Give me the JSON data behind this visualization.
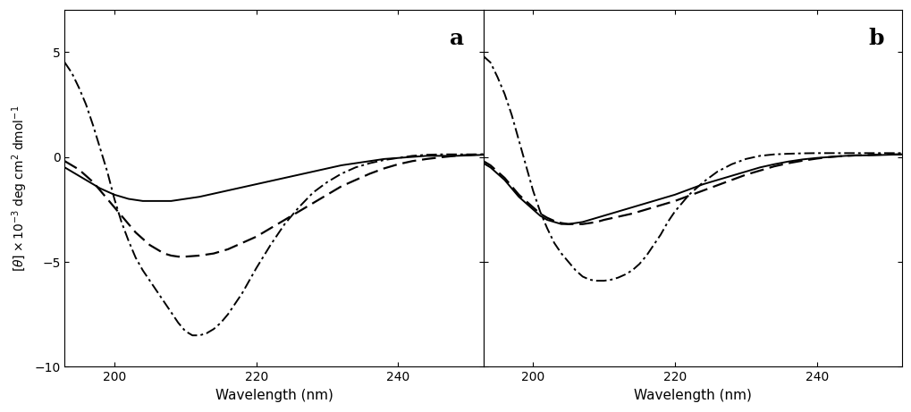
{
  "xlim": [
    193,
    252
  ],
  "ylim": [
    -10,
    7
  ],
  "yticks": [
    5,
    0,
    -5,
    -10
  ],
  "xticks": [
    200,
    220,
    240
  ],
  "xlabel": "Wavelength (nm)",
  "label_a": "a",
  "label_b": "b",
  "panel_a": {
    "solid": {
      "x": [
        193,
        194,
        195,
        196,
        197,
        198,
        199,
        200,
        201,
        202,
        203,
        204,
        205,
        206,
        207,
        208,
        209,
        210,
        212,
        214,
        216,
        218,
        220,
        222,
        224,
        226,
        228,
        230,
        232,
        234,
        236,
        238,
        240,
        242,
        244,
        246,
        248,
        250,
        252
      ],
      "y": [
        -0.5,
        -0.7,
        -0.9,
        -1.1,
        -1.3,
        -1.5,
        -1.65,
        -1.8,
        -1.9,
        -2.0,
        -2.05,
        -2.1,
        -2.1,
        -2.1,
        -2.1,
        -2.1,
        -2.05,
        -2.0,
        -1.9,
        -1.75,
        -1.6,
        -1.45,
        -1.3,
        -1.15,
        -1.0,
        -0.85,
        -0.7,
        -0.55,
        -0.4,
        -0.3,
        -0.2,
        -0.1,
        -0.05,
        0.0,
        0.05,
        0.05,
        0.05,
        0.07,
        0.1
      ]
    },
    "dashed": {
      "x": [
        193,
        194,
        195,
        196,
        197,
        198,
        199,
        200,
        201,
        202,
        203,
        204,
        205,
        206,
        207,
        208,
        209,
        210,
        212,
        214,
        216,
        218,
        220,
        222,
        224,
        226,
        228,
        230,
        232,
        234,
        236,
        238,
        240,
        242,
        244,
        246,
        248,
        250,
        252
      ],
      "y": [
        -0.2,
        -0.4,
        -0.6,
        -0.9,
        -1.2,
        -1.6,
        -2.0,
        -2.4,
        -2.8,
        -3.2,
        -3.6,
        -3.9,
        -4.2,
        -4.4,
        -4.6,
        -4.7,
        -4.75,
        -4.75,
        -4.7,
        -4.6,
        -4.4,
        -4.1,
        -3.8,
        -3.4,
        -3.0,
        -2.6,
        -2.2,
        -1.8,
        -1.4,
        -1.1,
        -0.8,
        -0.55,
        -0.35,
        -0.2,
        -0.1,
        -0.02,
        0.05,
        0.1,
        0.12
      ]
    },
    "dashdot": {
      "x": [
        193,
        194,
        195,
        196,
        197,
        198,
        199,
        200,
        201,
        202,
        203,
        204,
        205,
        206,
        207,
        208,
        209,
        210,
        211,
        212,
        213,
        214,
        215,
        216,
        217,
        218,
        219,
        220,
        222,
        224,
        226,
        228,
        230,
        232,
        234,
        236,
        238,
        240,
        242,
        244,
        246,
        248,
        250,
        252
      ],
      "y": [
        4.5,
        4.0,
        3.3,
        2.5,
        1.5,
        0.4,
        -0.7,
        -2.0,
        -3.1,
        -4.0,
        -4.8,
        -5.4,
        -5.9,
        -6.4,
        -6.9,
        -7.4,
        -7.9,
        -8.3,
        -8.5,
        -8.5,
        -8.4,
        -8.2,
        -7.9,
        -7.5,
        -7.0,
        -6.5,
        -5.9,
        -5.3,
        -4.2,
        -3.2,
        -2.4,
        -1.7,
        -1.2,
        -0.8,
        -0.5,
        -0.3,
        -0.15,
        -0.05,
        0.05,
        0.1,
        0.12,
        0.12,
        0.12,
        0.12
      ]
    }
  },
  "panel_b": {
    "solid": {
      "x": [
        193,
        194,
        195,
        196,
        197,
        198,
        199,
        200,
        201,
        202,
        203,
        204,
        205,
        206,
        207,
        208,
        209,
        210,
        212,
        214,
        216,
        218,
        220,
        222,
        224,
        226,
        228,
        230,
        232,
        234,
        236,
        238,
        240,
        242,
        244,
        246,
        248,
        250,
        252
      ],
      "y": [
        -0.3,
        -0.5,
        -0.8,
        -1.1,
        -1.5,
        -1.9,
        -2.2,
        -2.5,
        -2.8,
        -3.0,
        -3.1,
        -3.2,
        -3.2,
        -3.15,
        -3.1,
        -3.0,
        -2.9,
        -2.8,
        -2.6,
        -2.4,
        -2.2,
        -2.0,
        -1.8,
        -1.55,
        -1.3,
        -1.1,
        -0.9,
        -0.7,
        -0.5,
        -0.35,
        -0.22,
        -0.12,
        -0.05,
        0.0,
        0.05,
        0.07,
        0.08,
        0.1,
        0.12
      ]
    },
    "dashed": {
      "x": [
        193,
        194,
        195,
        196,
        197,
        198,
        199,
        200,
        201,
        202,
        203,
        204,
        205,
        206,
        207,
        208,
        209,
        210,
        212,
        214,
        216,
        218,
        220,
        222,
        224,
        226,
        228,
        230,
        232,
        234,
        236,
        238,
        240,
        242,
        244,
        246,
        248,
        250,
        252
      ],
      "y": [
        -0.2,
        -0.4,
        -0.7,
        -1.0,
        -1.4,
        -1.8,
        -2.1,
        -2.4,
        -2.7,
        -2.9,
        -3.05,
        -3.15,
        -3.2,
        -3.2,
        -3.2,
        -3.15,
        -3.1,
        -3.0,
        -2.85,
        -2.7,
        -2.5,
        -2.3,
        -2.1,
        -1.85,
        -1.6,
        -1.35,
        -1.1,
        -0.85,
        -0.65,
        -0.45,
        -0.3,
        -0.18,
        -0.08,
        0.0,
        0.05,
        0.08,
        0.1,
        0.12,
        0.12
      ]
    },
    "dashdot": {
      "x": [
        193,
        194,
        195,
        196,
        197,
        198,
        199,
        200,
        201,
        202,
        203,
        204,
        205,
        206,
        207,
        208,
        209,
        210,
        211,
        212,
        213,
        214,
        215,
        216,
        217,
        218,
        219,
        220,
        222,
        224,
        226,
        228,
        230,
        232,
        234,
        236,
        238,
        240,
        242,
        244,
        246,
        248,
        250,
        252
      ],
      "y": [
        4.8,
        4.5,
        3.8,
        3.0,
        2.0,
        0.8,
        -0.4,
        -1.6,
        -2.6,
        -3.4,
        -4.1,
        -4.6,
        -5.0,
        -5.4,
        -5.7,
        -5.85,
        -5.9,
        -5.9,
        -5.85,
        -5.75,
        -5.6,
        -5.4,
        -5.1,
        -4.7,
        -4.2,
        -3.7,
        -3.1,
        -2.6,
        -1.8,
        -1.2,
        -0.7,
        -0.35,
        -0.1,
        0.05,
        0.12,
        0.15,
        0.17,
        0.18,
        0.18,
        0.18,
        0.18,
        0.18,
        0.18,
        0.18
      ]
    }
  }
}
